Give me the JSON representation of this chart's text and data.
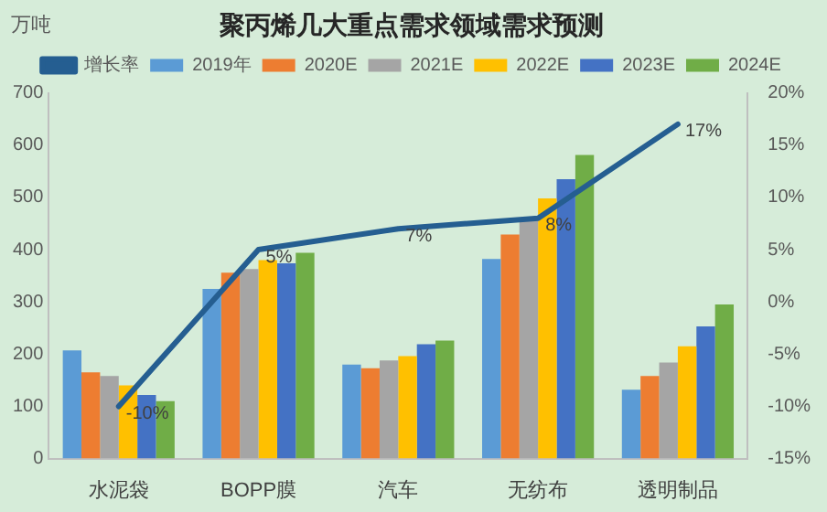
{
  "chart_data": {
    "type": "bar",
    "title": "聚丙烯几大重点需求领域需求预测",
    "ylabel": "万吨",
    "categories": [
      "水泥袋",
      "BOPP膜",
      "汽车",
      "无纺布",
      "透明制品"
    ],
    "series": [
      {
        "name": "2019年",
        "color": "#5b9bd5",
        "values": [
          207,
          325,
          180,
          382,
          132
        ]
      },
      {
        "name": "2020E",
        "color": "#ed7d31",
        "values": [
          165,
          356,
          173,
          429,
          158
        ]
      },
      {
        "name": "2021E",
        "color": "#a5a5a5",
        "values": [
          158,
          363,
          188,
          461,
          184
        ]
      },
      {
        "name": "2022E",
        "color": "#ffc000",
        "values": [
          140,
          380,
          196,
          498,
          215
        ]
      },
      {
        "name": "2023E",
        "color": "#4472c4",
        "values": [
          122,
          374,
          219,
          535,
          253
        ]
      },
      {
        "name": "2024E",
        "color": "#70ad47",
        "values": [
          110,
          394,
          226,
          581,
          295
        ]
      },
      {
        "name": "增长率",
        "type": "line",
        "axis": "y2",
        "color": "#255e91",
        "values": [
          -10,
          5,
          7,
          8,
          17
        ],
        "value_labels": [
          "-10%",
          "5%",
          "7%",
          "8%",
          "17%"
        ]
      }
    ],
    "ylim": [
      0,
      700
    ],
    "yticks": [
      0,
      100,
      200,
      300,
      400,
      500,
      600,
      700
    ],
    "y2lim": [
      -15,
      20
    ],
    "y2ticks": [
      {
        "value": -15,
        "label": "-15%"
      },
      {
        "value": -10,
        "label": "-10%"
      },
      {
        "value": -5,
        "label": "-5%"
      },
      {
        "value": 0,
        "label": "0%"
      },
      {
        "value": 5,
        "label": "5%"
      },
      {
        "value": 10,
        "label": "10%"
      },
      {
        "value": 15,
        "label": "15%"
      },
      {
        "value": 20,
        "label": "20%"
      }
    ],
    "grid": false,
    "legend": "top",
    "marker": "none"
  }
}
